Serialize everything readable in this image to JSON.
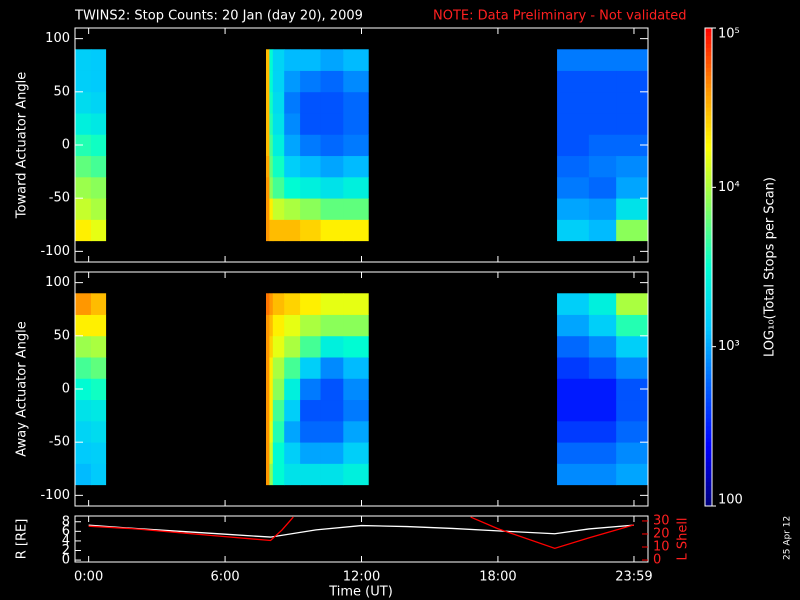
{
  "chart_data": {
    "type": "spectrogram",
    "title": "TWINS2: Stop Counts: 20 Jan (day  20), 2009",
    "note": "NOTE: Data Preliminary - Not validated",
    "stamp": "25 Apr 12",
    "xlabel": "Time (UT)",
    "xlim": [
      -0.6,
      24.6
    ],
    "xticks": [
      {
        "value": 0,
        "label": "0:00"
      },
      {
        "value": 6,
        "label": "6:00"
      },
      {
        "value": 12,
        "label": "12:00"
      },
      {
        "value": 18,
        "label": "18:00"
      },
      {
        "value": 23.983,
        "label": "23:59"
      }
    ],
    "angle_bins": [
      -90,
      -70,
      -50,
      -30,
      -10,
      10,
      30,
      50,
      70,
      90
    ],
    "colorbar": {
      "label": "LOG₁₀(Total Stops per Scan)",
      "log": true,
      "zlim": [
        100,
        100000
      ],
      "ticks": [
        {
          "value": 100000,
          "label": "10⁵"
        },
        {
          "value": 10000,
          "label": "10⁴"
        },
        {
          "value": 1000,
          "label": "10³"
        },
        100
      ],
      "colormap": [
        "#00007a",
        "#0000ff",
        "#0060ff",
        "#00c8ff",
        "#00ffd0",
        "#80ff60",
        "#ffff00",
        "#ff9000",
        "#ff0000"
      ]
    },
    "panels": [
      {
        "ylabel": "Toward Actuator Angle",
        "ylim": [
          -110,
          110
        ],
        "yticks": [
          -100,
          -50,
          0,
          50,
          100
        ],
        "blocks": [
          {
            "t": [
              -0.6,
              0.1,
              0.75
            ],
            "values": [
              [
                20000,
                12000,
                9000,
                6000,
                4000,
                2500,
                1800,
                1500,
                1500
              ],
              [
                15000,
                10000,
                8000,
                5000,
                3500,
                2200,
                1600,
                1400,
                1400
              ]
            ]
          },
          {
            "t": [
              7.8,
              7.95,
              8.1,
              8.6,
              9.3,
              10.2,
              11.2,
              12.3
            ],
            "values": [
              [
                40000,
                40000,
                40000,
                35000,
                30000,
                30000,
                30000,
                30000,
                30000
              ],
              [
                30000,
                20000,
                8000,
                6000,
                5000,
                4000,
                3500,
                3000,
                3000
              ],
              [
                30000,
                12000,
                5000,
                3500,
                2500,
                2000,
                1800,
                1600,
                1600
              ],
              [
                30000,
                10000,
                3000,
                1500,
                1000,
                800,
                700,
                900,
                1200
              ],
              [
                25000,
                8000,
                2500,
                1200,
                700,
                500,
                500,
                700,
                1200
              ],
              [
                20000,
                6000,
                2000,
                1000,
                600,
                500,
                500,
                600,
                1000
              ],
              [
                20000,
                6000,
                2500,
                1200,
                700,
                600,
                600,
                800,
                1200
              ]
            ]
          },
          {
            "t": [
              20.6,
              22,
              23.2,
              24.6
            ],
            "values": [
              [
                1500,
                1000,
                700,
                600,
                500,
                500,
                500,
                500,
                700
              ],
              [
                1200,
                900,
                600,
                700,
                600,
                500,
                500,
                500,
                700
              ],
              [
                8000,
                2000,
                1000,
                800,
                600,
                500,
                500,
                500,
                700
              ]
            ]
          }
        ]
      },
      {
        "ylabel": "Away Actuator Angle",
        "ylim": [
          -110,
          110
        ],
        "yticks": [
          -100,
          -50,
          0,
          50,
          100
        ],
        "blocks": [
          {
            "t": [
              -0.6,
              0.1,
              0.75
            ],
            "values": [
              [
                1200,
                1400,
                1600,
                2000,
                3000,
                5000,
                9000,
                20000,
                40000
              ],
              [
                1400,
                1500,
                1800,
                2200,
                3500,
                6000,
                10000,
                20000,
                30000
              ]
            ]
          },
          {
            "t": [
              7.8,
              7.95,
              8.1,
              8.6,
              9.3,
              10.2,
              11.2,
              12.3
            ],
            "values": [
              [
                40000,
                40000,
                40000,
                40000,
                40000,
                40000,
                40000,
                40000,
                50000
              ],
              [
                8000,
                12000,
                15000,
                20000,
                20000,
                20000,
                25000,
                30000,
                40000
              ],
              [
                3000,
                3000,
                4000,
                5000,
                8000,
                10000,
                15000,
                20000,
                30000
              ],
              [
                2000,
                1500,
                1000,
                1500,
                2500,
                5000,
                10000,
                15000,
                25000
              ],
              [
                2000,
                1000,
                600,
                500,
                700,
                1500,
                5000,
                10000,
                20000
              ],
              [
                2000,
                1000,
                600,
                500,
                500,
                800,
                2500,
                8000,
                15000
              ],
              [
                2500,
                1500,
                1000,
                700,
                800,
                1200,
                3000,
                8000,
                15000
              ]
            ]
          },
          {
            "t": [
              20.6,
              22,
              23.2,
              24.6
            ],
            "values": [
              [
                800,
                600,
                400,
                300,
                300,
                400,
                600,
                1000,
                1500
              ],
              [
                800,
                600,
                400,
                300,
                300,
                500,
                800,
                1500,
                2500
              ],
              [
                1000,
                800,
                600,
                500,
                500,
                800,
                1500,
                4000,
                10000
              ]
            ]
          }
        ]
      }
    ],
    "orbit": {
      "ylabel": "R [RE]",
      "y2label": "L Shell",
      "ylim": [
        -0.4,
        9.2
      ],
      "yticks": [
        0,
        2,
        4,
        6,
        8
      ],
      "y2lim": [
        -1.5,
        33.8
      ],
      "y2ticks": [
        0,
        10,
        20,
        30
      ],
      "series": [
        {
          "name": "R",
          "color": "#ffffff",
          "x": [
            0,
            2,
            4,
            6,
            8,
            10,
            12,
            14,
            16,
            18,
            20.5,
            22,
            23.98
          ],
          "values": [
            7.3,
            6.6,
            6.0,
            5.4,
            4.8,
            6.3,
            7.2,
            7.0,
            6.6,
            6.1,
            5.5,
            6.5,
            7.3
          ]
        },
        {
          "name": "L Shell",
          "color": "#ff0000",
          "axis": "y2",
          "x": [
            0,
            2,
            4,
            6,
            8,
            8.5,
            9.0,
            13,
            16.8,
            18,
            20.5,
            22,
            23.98
          ],
          "values": [
            26,
            24,
            21,
            18,
            15,
            23,
            33,
            null,
            33,
            24,
            9,
            17,
            27
          ]
        }
      ]
    }
  }
}
